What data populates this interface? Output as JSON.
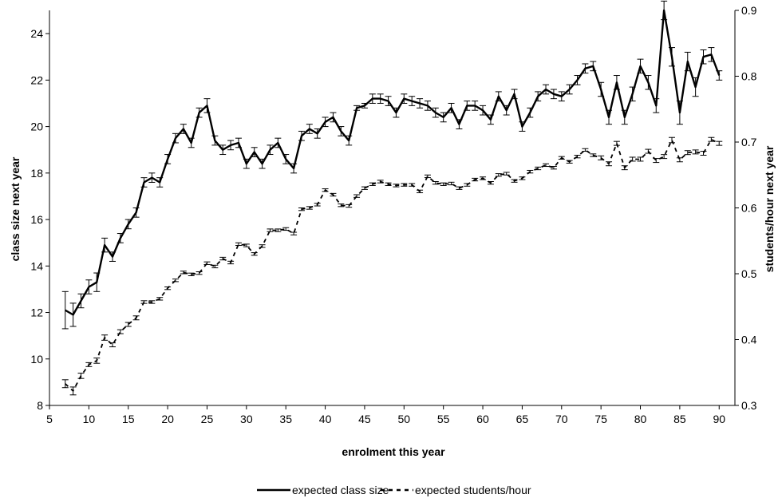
{
  "chart_data": {
    "type": "line",
    "title": "",
    "xlabel": "enrolment this year",
    "ylabel_left": "class size next year",
    "ylabel_right": "students/hour next year",
    "xlim": [
      5,
      92
    ],
    "x_ticks": [
      5,
      10,
      15,
      20,
      25,
      30,
      35,
      40,
      45,
      50,
      55,
      60,
      65,
      70,
      75,
      80,
      85,
      90
    ],
    "ylim_left": [
      8,
      25
    ],
    "y_ticks_left": [
      8,
      10,
      12,
      14,
      16,
      18,
      20,
      22,
      24
    ],
    "ylim_right": [
      0.3,
      0.9
    ],
    "y_ticks_right": [
      "0.3",
      "0.4",
      "0.5",
      "0.6",
      "0.7",
      "0.8",
      "0.9"
    ],
    "grid": false,
    "legend_position": "bottom",
    "x": [
      7,
      8,
      9,
      10,
      11,
      12,
      13,
      14,
      15,
      16,
      17,
      18,
      19,
      20,
      21,
      22,
      23,
      24,
      25,
      26,
      27,
      28,
      29,
      30,
      31,
      32,
      33,
      34,
      35,
      36,
      37,
      38,
      39,
      40,
      41,
      42,
      43,
      44,
      45,
      46,
      47,
      48,
      49,
      50,
      51,
      52,
      53,
      54,
      55,
      56,
      57,
      58,
      59,
      60,
      61,
      62,
      63,
      64,
      65,
      66,
      67,
      68,
      69,
      70,
      71,
      72,
      73,
      74,
      75,
      76,
      77,
      78,
      79,
      80,
      81,
      82,
      83,
      84,
      85,
      86,
      87,
      88,
      89,
      90
    ],
    "series": [
      {
        "name": "expected class size",
        "axis": "left",
        "style": "solid",
        "values": [
          12.1,
          11.9,
          12.5,
          13.1,
          13.3,
          14.9,
          14.4,
          15.2,
          15.8,
          16.3,
          17.6,
          17.8,
          17.6,
          18.6,
          19.5,
          19.9,
          19.3,
          20.6,
          20.9,
          19.4,
          19.0,
          19.2,
          19.3,
          18.4,
          18.9,
          18.4,
          19.0,
          19.3,
          18.6,
          18.2,
          19.6,
          19.9,
          19.7,
          20.2,
          20.4,
          19.8,
          19.4,
          20.8,
          20.9,
          21.2,
          21.2,
          21.1,
          20.6,
          21.2,
          21.1,
          21.0,
          20.9,
          20.6,
          20.4,
          20.8,
          20.1,
          20.9,
          20.9,
          20.7,
          20.3,
          21.3,
          20.7,
          21.4,
          20.0,
          20.6,
          21.3,
          21.6,
          21.4,
          21.3,
          21.6,
          22.0,
          22.5,
          22.6,
          21.6,
          20.4,
          21.9,
          20.4,
          21.4,
          22.6,
          21.9,
          20.9,
          25.0,
          23.0,
          20.6,
          22.8,
          21.7,
          23.0,
          23.1,
          22.2
        ],
        "errors": [
          0.8,
          0.5,
          0.3,
          0.3,
          0.4,
          0.3,
          0.2,
          0.2,
          0.2,
          0.2,
          0.2,
          0.2,
          0.2,
          0.2,
          0.2,
          0.2,
          0.2,
          0.2,
          0.3,
          0.2,
          0.2,
          0.2,
          0.2,
          0.2,
          0.2,
          0.2,
          0.2,
          0.2,
          0.2,
          0.2,
          0.2,
          0.2,
          0.2,
          0.2,
          0.2,
          0.2,
          0.2,
          0.1,
          0.1,
          0.2,
          0.2,
          0.2,
          0.2,
          0.2,
          0.2,
          0.2,
          0.2,
          0.2,
          0.2,
          0.2,
          0.2,
          0.2,
          0.2,
          0.2,
          0.2,
          0.2,
          0.2,
          0.2,
          0.2,
          0.2,
          0.2,
          0.2,
          0.2,
          0.2,
          0.2,
          0.2,
          0.2,
          0.2,
          0.3,
          0.3,
          0.3,
          0.3,
          0.3,
          0.3,
          0.3,
          0.3,
          0.4,
          0.4,
          0.5,
          0.4,
          0.4,
          0.3,
          0.3,
          0.2
        ]
      },
      {
        "name": "expected students/hour",
        "axis": "right",
        "style": "dashed",
        "values": [
          0.333,
          0.322,
          0.345,
          0.362,
          0.368,
          0.403,
          0.392,
          0.412,
          0.423,
          0.433,
          0.457,
          0.457,
          0.462,
          0.478,
          0.49,
          0.502,
          0.499,
          0.501,
          0.516,
          0.511,
          0.523,
          0.517,
          0.545,
          0.543,
          0.53,
          0.542,
          0.566,
          0.566,
          0.568,
          0.561,
          0.598,
          0.6,
          0.605,
          0.627,
          0.62,
          0.604,
          0.603,
          0.618,
          0.63,
          0.636,
          0.64,
          0.636,
          0.634,
          0.635,
          0.635,
          0.625,
          0.648,
          0.638,
          0.636,
          0.637,
          0.63,
          0.635,
          0.643,
          0.645,
          0.638,
          0.65,
          0.652,
          0.641,
          0.645,
          0.655,
          0.66,
          0.665,
          0.661,
          0.676,
          0.67,
          0.678,
          0.688,
          0.68,
          0.676,
          0.667,
          0.698,
          0.661,
          0.674,
          0.674,
          0.686,
          0.672,
          0.678,
          0.703,
          0.673,
          0.684,
          0.685,
          0.683,
          0.704,
          0.698
        ],
        "errors": [
          0.006,
          0.006,
          0.004,
          0.003,
          0.004,
          0.004,
          0.003,
          0.003,
          0.003,
          0.003,
          0.002,
          0.002,
          0.002,
          0.002,
          0.002,
          0.002,
          0.002,
          0.002,
          0.002,
          0.002,
          0.002,
          0.002,
          0.002,
          0.002,
          0.002,
          0.002,
          0.002,
          0.002,
          0.002,
          0.002,
          0.002,
          0.002,
          0.002,
          0.002,
          0.002,
          0.002,
          0.002,
          0.002,
          0.002,
          0.002,
          0.002,
          0.002,
          0.002,
          0.002,
          0.002,
          0.002,
          0.002,
          0.002,
          0.002,
          0.002,
          0.002,
          0.002,
          0.002,
          0.002,
          0.002,
          0.002,
          0.002,
          0.002,
          0.002,
          0.002,
          0.002,
          0.002,
          0.002,
          0.002,
          0.002,
          0.002,
          0.002,
          0.002,
          0.003,
          0.003,
          0.003,
          0.003,
          0.003,
          0.003,
          0.003,
          0.003,
          0.003,
          0.004,
          0.003,
          0.003,
          0.003,
          0.003,
          0.003,
          0.003
        ]
      }
    ]
  }
}
